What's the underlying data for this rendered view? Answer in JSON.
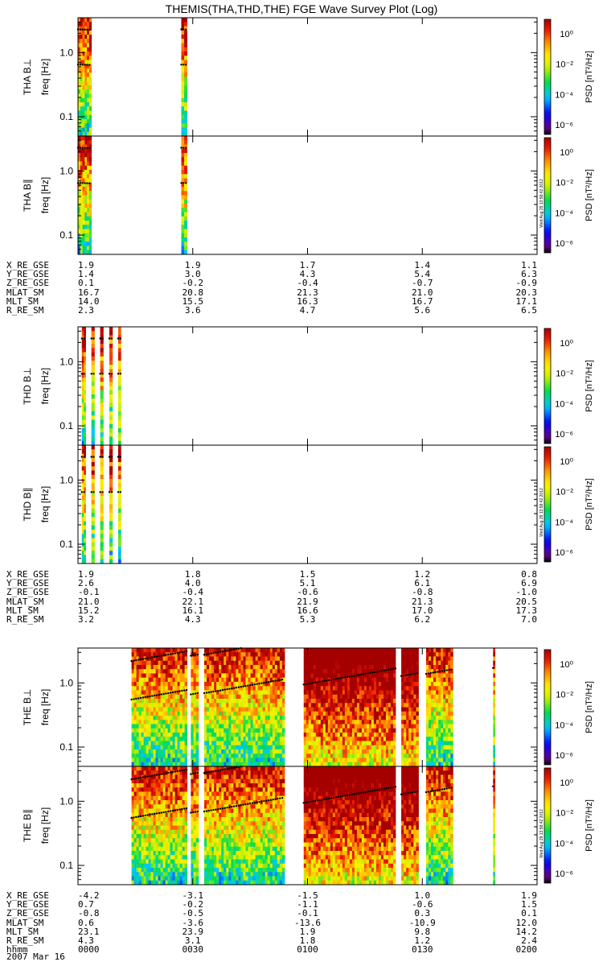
{
  "chart_data": {
    "type": "heatmap",
    "title": "THEMIS(THA,THD,THE) FGE Wave Survey Plot (Log)",
    "colorbar": {
      "label": "PSD [nT²/Hz]",
      "ticks": [
        "10⁰",
        "10⁻²",
        "10⁻⁴",
        "10⁻⁶"
      ],
      "scale": "log",
      "stamp": "Wed Aug 29 13:58:42 2012"
    },
    "yaxis": {
      "scale": "log",
      "unit": "freq [Hz]",
      "ticks": [
        "1.0",
        "0.1"
      ]
    },
    "time_axis": {
      "ticks": [
        "0000",
        "0030",
        "0100",
        "0130",
        "0200"
      ],
      "date": "2007 Mar 16"
    },
    "probes": [
      {
        "name": "THA",
        "panels": [
          {
            "label": "THA B⊥",
            "ylabel": "freq [Hz]"
          },
          {
            "label": "THA B∥",
            "ylabel": "freq [Hz]"
          }
        ],
        "data_segments": [
          [
            0.0,
            3.5
          ],
          [
            27.0,
            28.5
          ]
        ],
        "ephemeris": [
          {
            "name": "X_RE_GSE",
            "values": [
              "1.9",
              "1.9",
              "1.7",
              "1.4",
              "1.1"
            ]
          },
          {
            "name": "Y_RE_GSE",
            "values": [
              "1.4",
              "3.0",
              "4.3",
              "5.4",
              "6.3"
            ]
          },
          {
            "name": "Z_RE_GSE",
            "values": [
              "0.1",
              "-0.2",
              "-0.4",
              "-0.7",
              "-0.9"
            ]
          },
          {
            "name": "MLAT_SM",
            "values": [
              "16.7",
              "20.8",
              "21.3",
              "21.0",
              "20.3"
            ]
          },
          {
            "name": "MLT_SM",
            "values": [
              "14.0",
              "15.5",
              "16.3",
              "16.7",
              "17.1"
            ]
          },
          {
            "name": "R_RE_SM",
            "values": [
              "2.3",
              "3.6",
              "4.7",
              "5.6",
              "6.5"
            ]
          }
        ]
      },
      {
        "name": "THD",
        "panels": [
          {
            "label": "THD B⊥",
            "ylabel": "freq [Hz]"
          },
          {
            "label": "THD B∥",
            "ylabel": "freq [Hz]"
          }
        ],
        "data_segments": [
          [
            1.0,
            2.0
          ],
          [
            3.5,
            4.3
          ],
          [
            5.8,
            6.6
          ],
          [
            8.2,
            9.0
          ],
          [
            10.5,
            11.2
          ]
        ],
        "ephemeris": [
          {
            "name": "X_RE_GSE",
            "values": [
              "1.9",
              "1.8",
              "1.5",
              "1.2",
              "0.8"
            ]
          },
          {
            "name": "Y_RE_GSE",
            "values": [
              "2.6",
              "4.0",
              "5.1",
              "6.1",
              "6.9"
            ]
          },
          {
            "name": "Z_RE_GSE",
            "values": [
              "-0.1",
              "-0.4",
              "-0.6",
              "-0.8",
              "-1.0"
            ]
          },
          {
            "name": "MLAT_SM",
            "values": [
              "21.0",
              "22.1",
              "21.9",
              "21.3",
              "20.5"
            ]
          },
          {
            "name": "MLT_SM",
            "values": [
              "15.2",
              "16.1",
              "16.6",
              "17.0",
              "17.3"
            ]
          },
          {
            "name": "R_RE_SM",
            "values": [
              "3.2",
              "4.3",
              "5.3",
              "6.2",
              "7.0"
            ]
          }
        ]
      },
      {
        "name": "THE",
        "panels": [
          {
            "label": "THE B⊥",
            "ylabel": "freq [Hz]"
          },
          {
            "label": "THE B∥",
            "ylabel": "freq [Hz]"
          }
        ],
        "data_segments": [
          [
            14.0,
            28.5
          ],
          [
            29.5,
            31.5
          ],
          [
            33.0,
            54.0
          ],
          [
            59.0,
            83.0
          ],
          [
            84.5,
            89.0
          ],
          [
            91.0,
            98.0
          ],
          [
            108.5,
            109.0
          ]
        ],
        "ephemeris": [
          {
            "name": "X_RE_GSE",
            "values": [
              "-4.2",
              "-3.1",
              "-1.5",
              "1.0",
              "1.9"
            ]
          },
          {
            "name": "Y_RE_GSE",
            "values": [
              "0.7",
              "-0.2",
              "-1.1",
              "-0.6",
              "1.5"
            ]
          },
          {
            "name": "Z_RE_GSE",
            "values": [
              "-0.8",
              "-0.5",
              "-0.1",
              "0.3",
              "0.1"
            ]
          },
          {
            "name": "MLAT_SM",
            "values": [
              "0.6",
              "-3.6",
              "-13.6",
              "-10.9",
              "12.0"
            ]
          },
          {
            "name": "MLT_SM",
            "values": [
              "23.1",
              "23.9",
              "1.9",
              "9.8",
              "14.2"
            ]
          },
          {
            "name": "R_RE_SM",
            "values": [
              "4.3",
              "3.1",
              "1.8",
              "1.2",
              "2.4"
            ]
          },
          {
            "name": "hhmm",
            "values": [
              "0000",
              "0030",
              "0100",
              "0130",
              "0200"
            ]
          }
        ]
      }
    ]
  }
}
